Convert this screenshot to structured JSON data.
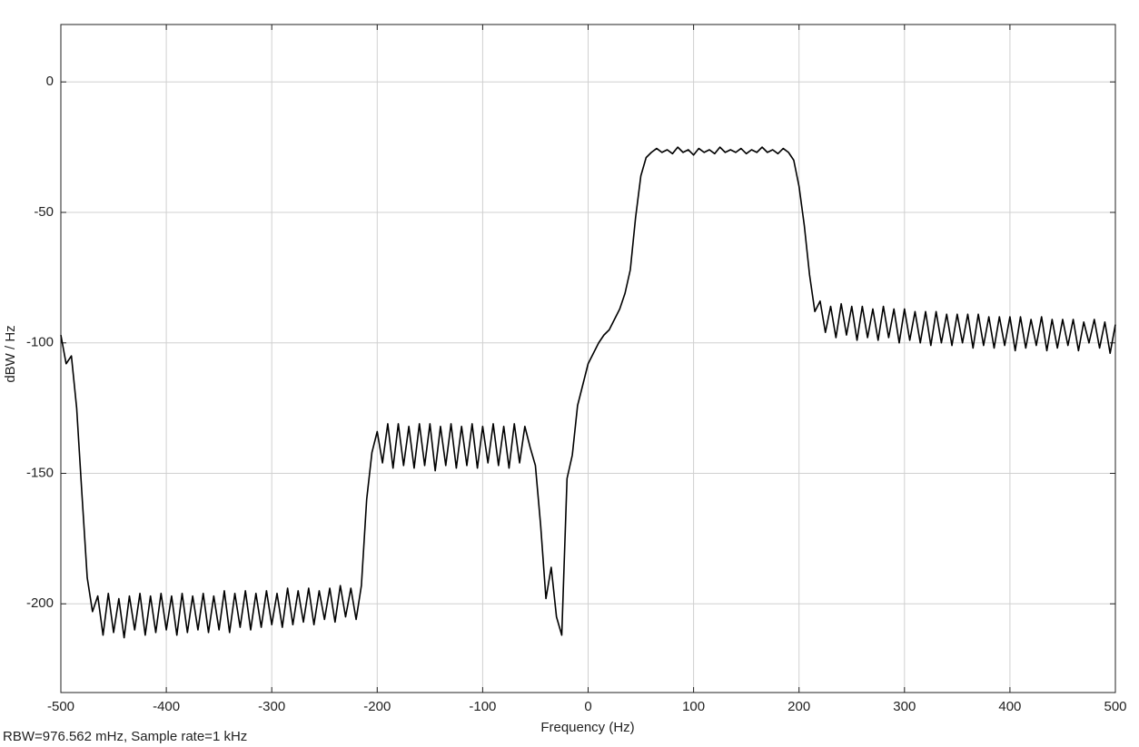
{
  "chart_data": {
    "type": "line",
    "xlabel": "Frequency (Hz)",
    "ylabel": "dBW / Hz",
    "annotation": "RBW=976.562 mHz, Sample rate=1 kHz",
    "color": "#000000",
    "grid": true,
    "xlim": [
      -500,
      500
    ],
    "ylim": [
      -234,
      22
    ],
    "xticks": [
      -500,
      -400,
      -300,
      -200,
      -100,
      0,
      100,
      200,
      300,
      400,
      500
    ],
    "yticks": [
      -200,
      -150,
      -100,
      -50,
      0
    ],
    "x": [
      -500,
      -495,
      -490,
      -485,
      -480,
      -475,
      -470,
      -465,
      -460,
      -455,
      -450,
      -445,
      -440,
      -435,
      -430,
      -425,
      -420,
      -415,
      -410,
      -405,
      -400,
      -395,
      -390,
      -385,
      -380,
      -375,
      -370,
      -365,
      -360,
      -355,
      -350,
      -345,
      -340,
      -335,
      -330,
      -325,
      -320,
      -315,
      -310,
      -305,
      -300,
      -295,
      -290,
      -285,
      -280,
      -275,
      -270,
      -265,
      -260,
      -255,
      -250,
      -245,
      -240,
      -235,
      -230,
      -225,
      -220,
      -215,
      -210,
      -205,
      -200,
      -195,
      -190,
      -185,
      -180,
      -175,
      -170,
      -165,
      -160,
      -155,
      -150,
      -145,
      -140,
      -135,
      -130,
      -125,
      -120,
      -115,
      -110,
      -105,
      -100,
      -95,
      -90,
      -85,
      -80,
      -75,
      -70,
      -65,
      -60,
      -55,
      -50,
      -45,
      -40,
      -35,
      -30,
      -25,
      -20,
      -15,
      -10,
      -5,
      0,
      5,
      10,
      15,
      20,
      25,
      30,
      35,
      40,
      45,
      50,
      55,
      60,
      65,
      70,
      75,
      80,
      85,
      90,
      95,
      100,
      105,
      110,
      115,
      120,
      125,
      130,
      135,
      140,
      145,
      150,
      155,
      160,
      165,
      170,
      175,
      180,
      185,
      190,
      195,
      200,
      205,
      210,
      215,
      220,
      225,
      230,
      235,
      240,
      245,
      250,
      255,
      260,
      265,
      270,
      275,
      280,
      285,
      290,
      295,
      300,
      305,
      310,
      315,
      320,
      325,
      330,
      335,
      340,
      345,
      350,
      355,
      360,
      365,
      370,
      375,
      380,
      385,
      390,
      395,
      400,
      405,
      410,
      415,
      420,
      425,
      430,
      435,
      440,
      445,
      450,
      455,
      460,
      465,
      470,
      475,
      480,
      485,
      490,
      495,
      500
    ],
    "values": [
      -97,
      -108,
      -105,
      -125,
      -158,
      -190,
      -203,
      -197,
      -212,
      -196,
      -211,
      -198,
      -213,
      -197,
      -210,
      -196,
      -212,
      -197,
      -211,
      -196,
      -210,
      -197,
      -212,
      -196,
      -211,
      -197,
      -210,
      -196,
      -211,
      -197,
      -210,
      -195,
      -211,
      -196,
      -209,
      -195,
      -210,
      -196,
      -209,
      -195,
      -208,
      -196,
      -209,
      -194,
      -208,
      -195,
      -207,
      -194,
      -208,
      -195,
      -206,
      -194,
      -207,
      -193,
      -205,
      -194,
      -206,
      -193,
      -160,
      -142,
      -134,
      -146,
      -131,
      -148,
      -131,
      -147,
      -132,
      -148,
      -131,
      -147,
      -131,
      -149,
      -132,
      -147,
      -131,
      -148,
      -132,
      -147,
      -131,
      -148,
      -132,
      -146,
      -131,
      -147,
      -132,
      -148,
      -131,
      -146,
      -132,
      -140,
      -147,
      -170,
      -198,
      -186,
      -205,
      -212,
      -152,
      -143,
      -124,
      -116,
      -108,
      -104,
      -100,
      -97,
      -95,
      -91,
      -87,
      -81,
      -72,
      -52,
      -36,
      -29,
      -27,
      -25.5,
      -27,
      -26,
      -27.5,
      -25,
      -27,
      -26,
      -28,
      -25.5,
      -27,
      -26,
      -27.5,
      -25,
      -27,
      -26,
      -27,
      -25.5,
      -27.5,
      -26,
      -27,
      -25,
      -27,
      -26,
      -27.5,
      -25.5,
      -27,
      -30,
      -40,
      -55,
      -74,
      -88,
      -84,
      -96,
      -86,
      -98,
      -85,
      -97,
      -86,
      -99,
      -86,
      -98,
      -87,
      -99,
      -86,
      -98,
      -87,
      -100,
      -87,
      -99,
      -88,
      -100,
      -88,
      -101,
      -88,
      -100,
      -89,
      -101,
      -89,
      -100,
      -89,
      -102,
      -89,
      -101,
      -90,
      -102,
      -90,
      -101,
      -90,
      -103,
      -90,
      -102,
      -91,
      -101,
      -90,
      -103,
      -91,
      -102,
      -91,
      -101,
      -91,
      -103,
      -92,
      -100,
      -91,
      -102,
      -92,
      -104,
      -93
    ]
  }
}
